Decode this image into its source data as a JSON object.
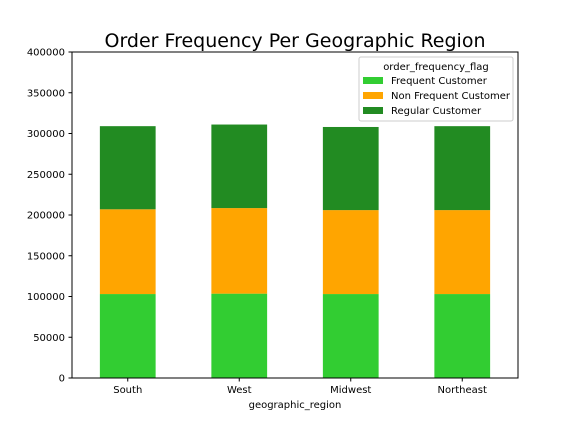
{
  "chart_data": {
    "type": "bar",
    "stacked": true,
    "title": "Order Frequency Per Geographic Region",
    "xlabel": "geographic_region",
    "ylabel": "",
    "categories": [
      "South",
      "West",
      "Midwest",
      "Northeast"
    ],
    "ylim": [
      0,
      400000
    ],
    "yticks": [
      0,
      50000,
      100000,
      150000,
      200000,
      250000,
      300000,
      350000,
      400000
    ],
    "grid": false,
    "legend": {
      "title": "order_frequency_flag",
      "placement": "top-right"
    },
    "series": [
      {
        "name": "Frequent Customer",
        "color": "#32cd32",
        "values": [
          103000,
          103500,
          103000,
          103000
        ]
      },
      {
        "name": "Non Frequent Customer",
        "color": "#ffa500",
        "values": [
          104000,
          105000,
          103000,
          103000
        ]
      },
      {
        "name": "Regular Customer",
        "color": "#228b22",
        "values": [
          102000,
          102500,
          102000,
          103000
        ]
      }
    ]
  }
}
